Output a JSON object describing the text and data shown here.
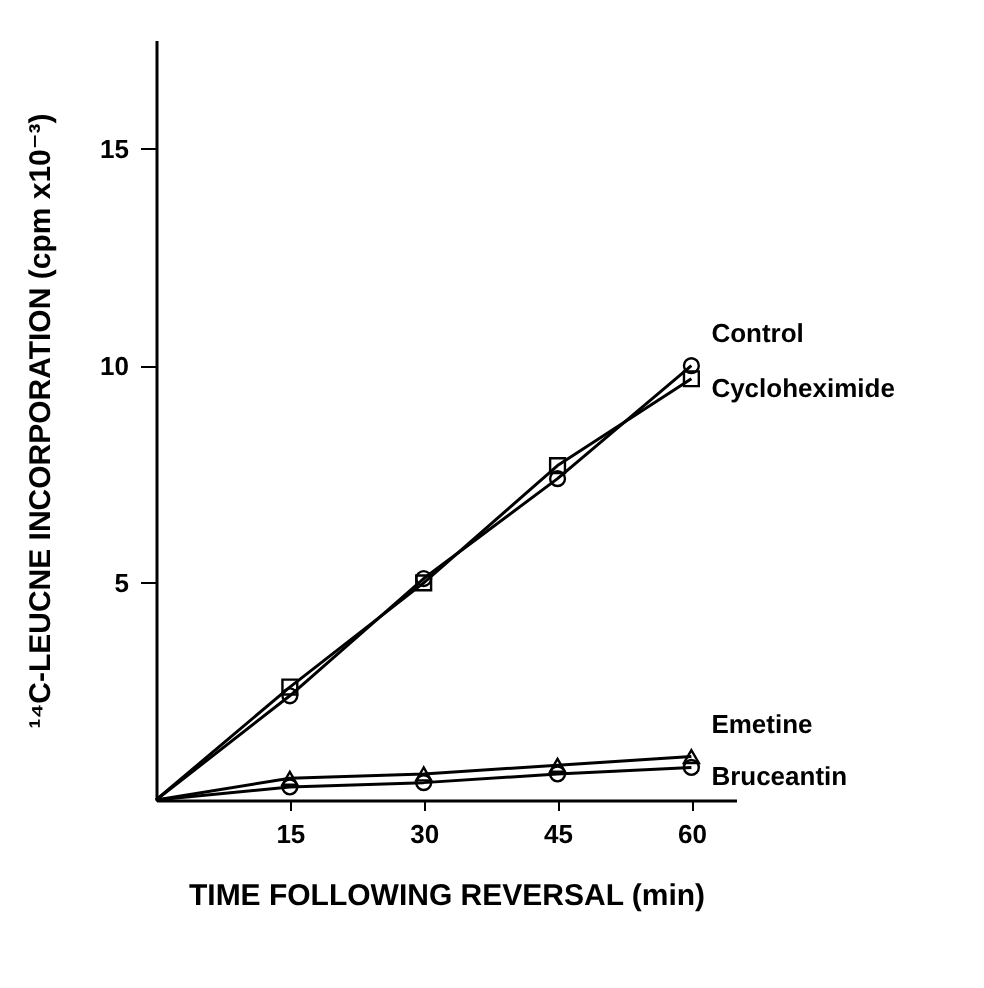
{
  "chart_data": {
    "type": "line",
    "xlabel": "TIME FOLLOWING REVERSAL (min)",
    "ylabel": "¹⁴C-LEUCNE INCORPORATION (cpm x10⁻³)",
    "x": [
      0,
      15,
      30,
      45,
      60
    ],
    "xlim": [
      0,
      65
    ],
    "xticks": [
      15,
      30,
      45,
      60
    ],
    "ylim": [
      0,
      17.5
    ],
    "yticks": [
      5,
      10,
      15
    ],
    "grid": false,
    "legend": false,
    "line_style": "solid",
    "series": [
      {
        "name": "Control",
        "color": "#000000",
        "marker": "circle",
        "values": [
          0,
          2.4,
          5.1,
          7.4,
          10.0
        ]
      },
      {
        "name": "Cycloheximide",
        "color": "#000000",
        "marker": "square",
        "values": [
          0,
          2.6,
          5.0,
          7.7,
          9.7
        ]
      },
      {
        "name": "Emetine",
        "color": "#000000",
        "marker": "triangle",
        "values": [
          0,
          0.5,
          0.6,
          0.8,
          1.0
        ]
      },
      {
        "name": "Bruceantin",
        "color": "#000000",
        "marker": "circle",
        "values": [
          0,
          0.3,
          0.4,
          0.6,
          0.75
        ]
      }
    ]
  }
}
